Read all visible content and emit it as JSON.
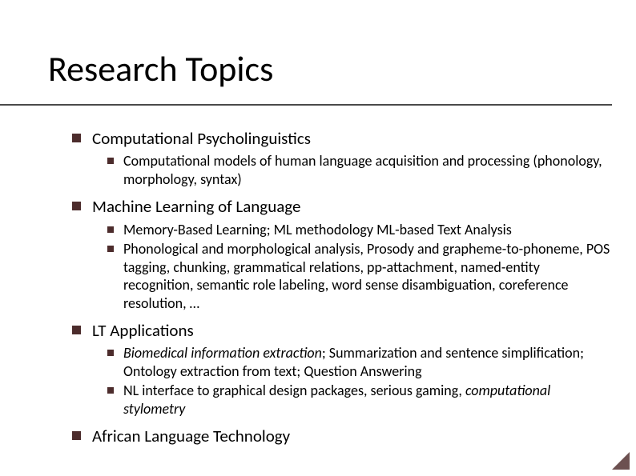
{
  "slide": {
    "title": "Research Topics",
    "title_fontsize": 44,
    "title_color": "#000000",
    "rule_color": "#4a4a4a",
    "bullet_color": "#4c2c2c",
    "background_color": "#ffffff",
    "body_font": "Calibri",
    "l1_fontsize": 21,
    "l2_fontsize": 18,
    "items": [
      {
        "label": "Computational Psycholinguistics",
        "sub": [
          {
            "text": "Computational models of human language acquisition and processing (phonology, morphology, syntax)"
          }
        ]
      },
      {
        "label": "Machine Learning of Language",
        "sub": [
          {
            "text": "Memory-Based Learning; ML methodology ML-based Text Analysis"
          },
          {
            "text": "Phonological and morphological analysis, Prosody and grapheme-to-phoneme, POS tagging, chunking, grammatical relations, pp-attachment, named-entity recognition, semantic role labeling, word sense disambiguation, coreference resolution, …"
          }
        ]
      },
      {
        "label": "LT Applications",
        "sub": [
          {
            "html": "<span class=\"italic\">Biomedical information extraction</span>; Summarization and sentence simplification; Ontology extraction from text; Question Answering"
          },
          {
            "html": "NL interface to graphical design packages, serious gaming, <span class=\"italic\">computational stylometry</span>"
          }
        ]
      },
      {
        "label": "African Language Technology",
        "sub": []
      }
    ]
  }
}
